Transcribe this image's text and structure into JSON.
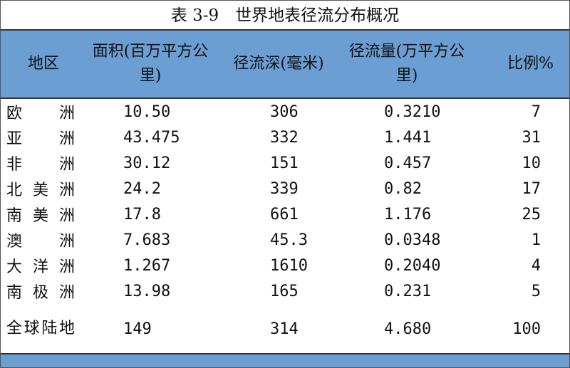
{
  "title": "表 3-9　世界地表径流分布概况",
  "table": {
    "header": [
      "地区",
      "面积(百万平方公里)",
      "径流深(毫米)",
      "径流量(万平方公里)",
      "比例%"
    ],
    "rows": [
      [
        "欧洲",
        "10.50",
        "306",
        "0.3210",
        "7"
      ],
      [
        "亚洲",
        "43.475",
        "332",
        "1.441",
        "31"
      ],
      [
        "非洲",
        "30.12",
        "151",
        "0.457",
        "10"
      ],
      [
        "北美洲",
        "24.2",
        "339",
        "0.82",
        "17"
      ],
      [
        "南美洲",
        "17.8",
        "661",
        "1.176",
        "25"
      ],
      [
        "澳洲",
        "7.683",
        "45.3",
        "0.0348",
        "1"
      ],
      [
        "大洋洲",
        "1.267",
        "1610",
        "0.2040",
        "4"
      ],
      [
        "南极洲",
        "13.98",
        "165",
        "0.231",
        "5"
      ],
      [
        "全球陆地",
        "149",
        "314",
        "4.680",
        "100"
      ]
    ]
  }
}
